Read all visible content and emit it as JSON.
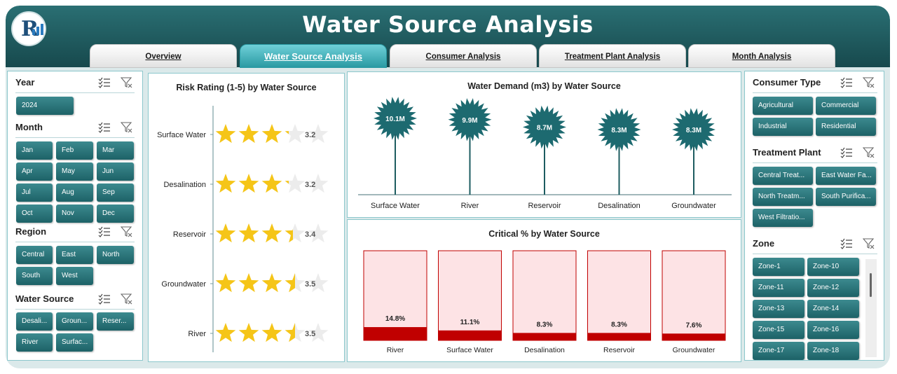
{
  "header": {
    "title": "Water Source Analysis",
    "tabs": [
      {
        "label": "Overview",
        "active": false
      },
      {
        "label": "Water Source Analysis",
        "active": true
      },
      {
        "label": "Consumer Analysis",
        "active": false
      },
      {
        "label": "Treatment Plant Analysis",
        "active": false
      },
      {
        "label": "Month Analysis",
        "active": false
      }
    ]
  },
  "left_slicers": {
    "year": {
      "title": "Year",
      "items": [
        "2024"
      ]
    },
    "month": {
      "title": "Month",
      "items": [
        "Jan",
        "Feb",
        "Mar",
        "Apr",
        "May",
        "Jun",
        "Jul",
        "Aug",
        "Sep",
        "Oct",
        "Nov",
        "Dec"
      ]
    },
    "region": {
      "title": "Region",
      "items": [
        "Central",
        "East",
        "North",
        "South",
        "West"
      ]
    },
    "water_source": {
      "title": "Water Source",
      "items": [
        "Desali...",
        "Groun...",
        "Reser...",
        "River",
        "Surfac..."
      ]
    }
  },
  "right_slicers": {
    "consumer_type": {
      "title": "Consumer Type",
      "items": [
        "Agricultural",
        "Commercial",
        "Industrial",
        "Residential"
      ]
    },
    "treatment_plant": {
      "title": "Treatment Plant",
      "items": [
        "Central Treat...",
        "East Water Fa...",
        "North Treatm...",
        "South Purifica...",
        "West Filtratio..."
      ]
    },
    "zone": {
      "title": "Zone",
      "items": [
        "Zone-1",
        "Zone-10",
        "Zone-11",
        "Zone-12",
        "Zone-13",
        "Zone-14",
        "Zone-15",
        "Zone-16",
        "Zone-17",
        "Zone-18"
      ]
    }
  },
  "icons": {
    "multi_select": "multi-select-icon",
    "clear_filter": "clear-filter-icon"
  },
  "colors": {
    "teal": "#1d6267",
    "accent": "#2a9aa3",
    "star": "#f5c518",
    "red": "#c00000",
    "pink": "#fde3e5"
  },
  "chart_data": [
    {
      "type": "bar",
      "title": "Risk Rating (1-5) by Water Source",
      "categories": [
        "Surface Water",
        "Desalination",
        "Reservoir",
        "Groundwater",
        "River"
      ],
      "values": [
        3.2,
        3.2,
        3.4,
        3.5,
        3.5
      ],
      "labels": [
        "3.2",
        "3.2",
        "3.4",
        "3.5",
        "3.5"
      ],
      "ylim": [
        0,
        5
      ]
    },
    {
      "type": "bar",
      "title": "Water Demand (m3) by Water Source",
      "categories": [
        "Surface Water",
        "River",
        "Reservoir",
        "Desalination",
        "Groundwater"
      ],
      "values": [
        10.1,
        9.9,
        8.7,
        8.3,
        8.3
      ],
      "labels": [
        "10.1M",
        "9.9M",
        "8.7M",
        "8.3M",
        "8.3M"
      ]
    },
    {
      "type": "bar",
      "title": "Critical % by Water Source",
      "categories": [
        "River",
        "Surface Water",
        "Desalination",
        "Reservoir",
        "Groundwater"
      ],
      "values": [
        14.8,
        11.1,
        8.3,
        8.3,
        7.6
      ],
      "labels": [
        "14.8%",
        "11.1%",
        "8.3%",
        "8.3%",
        "7.6%"
      ],
      "ylim": [
        0,
        100
      ]
    }
  ]
}
